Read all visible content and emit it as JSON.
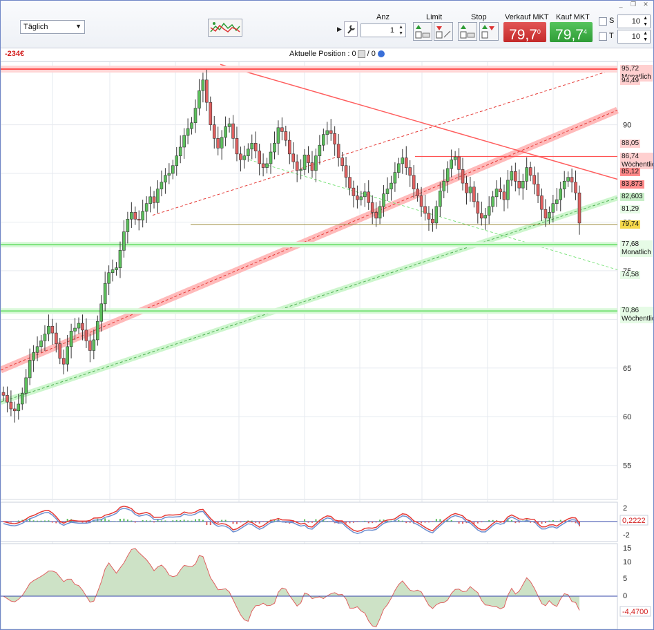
{
  "toolbar": {
    "timeframe": "Täglich",
    "qty_label": "Anz",
    "qty_value": "1",
    "limit_label": "Limit",
    "stop_label": "Stop",
    "sell_label": "Verkauf MKT",
    "sell_price": "79,7",
    "sell_price_sup": "0",
    "buy_label": "Kauf MKT",
    "buy_price": "79,7",
    "buy_price_sup": "4",
    "s_label": "S",
    "s_value": "10",
    "t_label": "T",
    "t_value": "10"
  },
  "position_bar": {
    "pnl": "-234€",
    "label": "Aktuelle Position : 0",
    "sep": " / 0"
  },
  "colors": {
    "up": "#4caf50",
    "down": "#e53935",
    "resistance": "#ff6b6b",
    "support": "#7be37b",
    "olive": "#9a8a3a"
  },
  "chart_data": {
    "type": "candlestick",
    "y_ticks": [
      "90",
      "85",
      "80",
      "75",
      "70",
      "65",
      "60",
      "55"
    ],
    "ylim": [
      51.5,
      96.5
    ],
    "horizontal_levels": [
      {
        "value": 95.72,
        "label": "95,72",
        "note": "Monatlich",
        "color": "#ff6b6b"
      },
      {
        "value": 94.49,
        "label": "94,49",
        "color": "#ff6b6b"
      },
      {
        "value": 88.05,
        "label": "88,05",
        "color": "#ff6b6b"
      },
      {
        "value": 86.74,
        "label": "86,74",
        "note": "Wöchentlich",
        "color": "#ff6b6b"
      },
      {
        "value": 85.12,
        "label": "85,12",
        "color": "#e53935"
      },
      {
        "value": 83.873,
        "label": "83,873",
        "color": "#e53935"
      },
      {
        "value": 82.603,
        "label": "82,603",
        "color": "#4caf50"
      },
      {
        "value": 81.29,
        "label": "81,29",
        "color": "#7be37b"
      },
      {
        "value": 79.74,
        "label": "79,74",
        "color": "#e0c040"
      },
      {
        "value": 77.68,
        "label": "77,68",
        "note": "Monatlich",
        "color": "#7be37b"
      },
      {
        "value": 74.58,
        "label": "74,58",
        "color": "#7be37b"
      },
      {
        "value": 70.86,
        "label": "70,86",
        "note": "Wöchentlich",
        "color": "#7be37b"
      }
    ],
    "closes": [
      62.2,
      61.5,
      60.8,
      60.6,
      61.3,
      62.4,
      64.0,
      65.8,
      66.6,
      67.2,
      67.8,
      68.5,
      69.3,
      68.6,
      67.5,
      66.0,
      65.4,
      67.2,
      68.8,
      69.1,
      69.6,
      68.9,
      67.8,
      66.8,
      67.9,
      69.8,
      71.6,
      73.7,
      74.8,
      75.1,
      75.3,
      77.1,
      79.0,
      80.3,
      81.0,
      80.3,
      80.2,
      81.1,
      81.9,
      82.6,
      82.0,
      83.4,
      84.1,
      84.8,
      85.0,
      85.8,
      86.8,
      87.7,
      88.9,
      89.6,
      90.2,
      91.7,
      93.5,
      94.6,
      92.3,
      90.0,
      88.6,
      87.6,
      88.7,
      89.8,
      90.1,
      88.6,
      87.0,
      86.4,
      86.8,
      87.5,
      88.1,
      87.3,
      86.0,
      85.6,
      86.0,
      87.2,
      88.1,
      89.7,
      89.3,
      88.4,
      87.0,
      86.2,
      85.3,
      85.4,
      86.9,
      86.1,
      85.3,
      86.8,
      87.9,
      89.0,
      89.4,
      89.1,
      88.0,
      86.6,
      85.8,
      84.6,
      83.5,
      82.7,
      82.3,
      82.6,
      83.1,
      82.0,
      81.0,
      80.4,
      81.6,
      82.9,
      83.4,
      84.0,
      85.1,
      86.0,
      86.6,
      85.6,
      84.8,
      83.4,
      82.7,
      81.6,
      80.9,
      80.3,
      79.9,
      81.6,
      83.2,
      84.2,
      85.5,
      86.4,
      86.7,
      85.4,
      84.0,
      83.0,
      83.6,
      82.1,
      80.9,
      80.4,
      80.7,
      81.6,
      82.6,
      83.4,
      83.1,
      82.3,
      84.3,
      85.2,
      84.2,
      83.5,
      84.2,
      85.6,
      84.8,
      83.9,
      82.7,
      81.3,
      80.4,
      81.0,
      81.9,
      82.3,
      83.4,
      84.2,
      84.6,
      84.1,
      83.0,
      79.9
    ],
    "macd": {
      "label": "0,2222",
      "ticks": [
        "2",
        "0",
        "-2"
      ]
    },
    "oscillator": {
      "label": "-4,4700",
      "ticks": [
        "15",
        "10",
        "5",
        "0",
        "-5"
      ]
    }
  }
}
